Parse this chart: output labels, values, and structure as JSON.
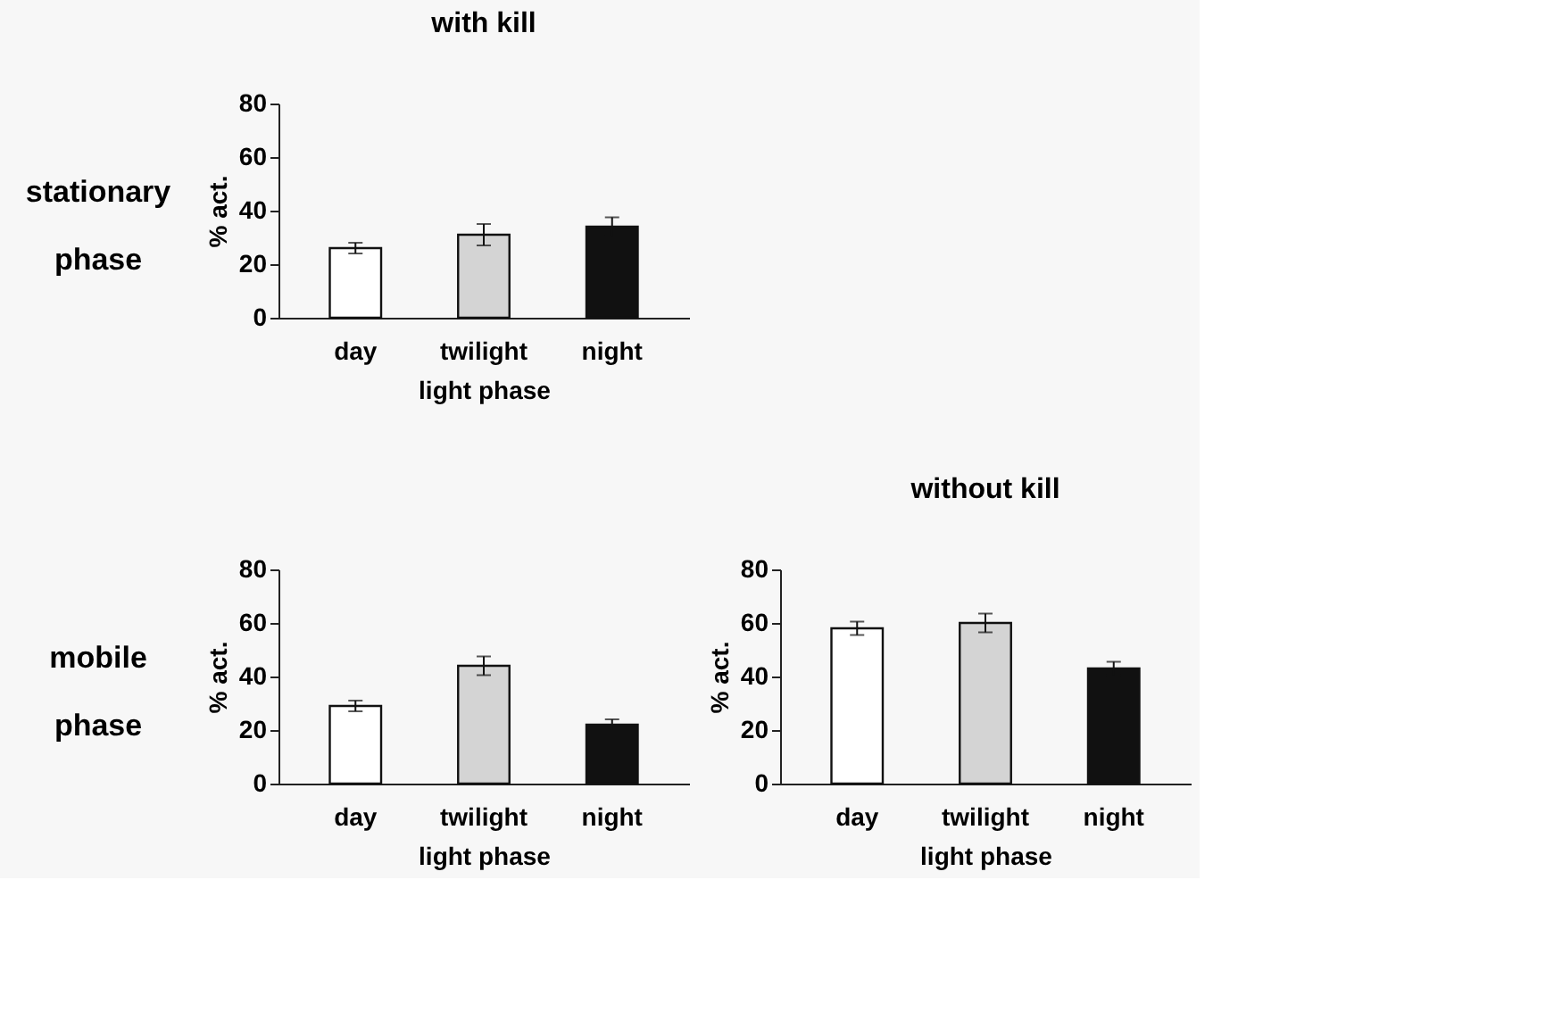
{
  "chart_data": [
    {
      "type": "bar",
      "title": "with kill",
      "annotations": [
        "stationary phase"
      ],
      "categories": [
        "day",
        "twilight",
        "night"
      ],
      "values": [
        26,
        31,
        34
      ],
      "errors": [
        2,
        4,
        3.5
      ],
      "colors": [
        "#ffffff",
        "#d4d4d4",
        "#111111"
      ],
      "ylim": [
        0,
        80
      ],
      "yticks": [
        0,
        20,
        40,
        60,
        80
      ],
      "ylabel": "% act.",
      "xlabel": "light phase",
      "grid": false
    },
    {
      "type": "bar",
      "annotations": [
        "mobile phase"
      ],
      "categories": [
        "day",
        "twilight",
        "night"
      ],
      "values": [
        29,
        44,
        22
      ],
      "errors": [
        2,
        3.5,
        2
      ],
      "colors": [
        "#ffffff",
        "#d4d4d4",
        "#111111"
      ],
      "ylim": [
        0,
        80
      ],
      "yticks": [
        0,
        20,
        40,
        60,
        80
      ],
      "ylabel": "% act.",
      "xlabel": "light phase",
      "grid": false
    },
    {
      "type": "bar",
      "title": "without kill",
      "categories": [
        "day",
        "twilight",
        "night"
      ],
      "values": [
        58,
        60,
        43
      ],
      "errors": [
        2.5,
        3.5,
        2.5
      ],
      "colors": [
        "#ffffff",
        "#d4d4d4",
        "#111111"
      ],
      "ylim": [
        0,
        80
      ],
      "yticks": [
        0,
        20,
        40,
        60,
        80
      ],
      "ylabel": "% act.",
      "xlabel": "light phase",
      "grid": false
    }
  ]
}
